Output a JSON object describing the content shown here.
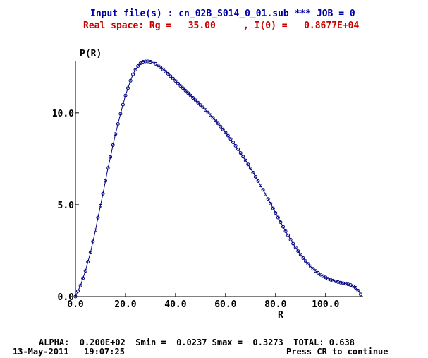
{
  "header": {
    "line1": "Input file(s) : cn_02B_S014_0_01.sub *** JOB = 0",
    "line2": "Real space: Rg =   35.00     , I(0) =   0.8677E+04"
  },
  "footer": {
    "line1": "ALPHA:  0.200E+02  Smin =  0.0237 Smax =  0.3273  TOTAL: 0.638",
    "line2": "13-May-2011   19:07:25",
    "line3": "Press CR to continue"
  },
  "colors": {
    "header1": "#0000aa",
    "header2": "#cc0000",
    "curve": "#000080",
    "axis": "#000000"
  },
  "chart_data": {
    "type": "scatter",
    "xlabel": "R",
    "ylabel": "P(R)",
    "xlim": [
      0,
      115
    ],
    "ylim": [
      0,
      12.8
    ],
    "x_ticks": [
      "0.0",
      "20.0",
      "40.0",
      "60.0",
      "80.0",
      "100.0"
    ],
    "x_tick_values": [
      0,
      20,
      40,
      60,
      80,
      100
    ],
    "y_ticks": [
      "0.0",
      "5.0",
      "10.0"
    ],
    "y_tick_values": [
      0,
      5,
      10
    ],
    "series": [
      {
        "marker": "circle",
        "connected": true,
        "x": [
          0.0,
          1.0,
          2.0,
          3.0,
          4.0,
          5.0,
          6.0,
          7.0,
          8.0,
          9.0,
          10.0,
          11.0,
          12.0,
          13.0,
          14.0,
          15.0,
          16.0,
          17.0,
          18.0,
          19.0,
          20.0,
          21.0,
          22.0,
          23.0,
          24.0,
          25.0,
          26.0,
          27.0,
          28.0,
          29.0,
          30.0,
          31.0,
          32.0,
          33.0,
          34.0,
          35.0,
          36.0,
          37.0,
          38.0,
          39.0,
          40.0,
          41.0,
          42.0,
          43.0,
          44.0,
          45.0,
          46.0,
          47.0,
          48.0,
          49.0,
          50.0,
          51.0,
          52.0,
          53.0,
          54.0,
          55.0,
          56.0,
          57.0,
          58.0,
          59.0,
          60.0,
          61.0,
          62.0,
          63.0,
          64.0,
          65.0,
          66.0,
          67.0,
          68.0,
          69.0,
          70.0,
          71.0,
          72.0,
          73.0,
          74.0,
          75.0,
          76.0,
          77.0,
          78.0,
          79.0,
          80.0,
          81.0,
          82.0,
          83.0,
          84.0,
          85.0,
          86.0,
          87.0,
          88.0,
          89.0,
          90.0,
          91.0,
          92.0,
          93.0,
          94.0,
          95.0,
          96.0,
          97.0,
          98.0,
          99.0,
          100.0,
          101.0,
          102.0,
          103.0,
          104.0,
          105.0,
          106.0,
          107.0,
          108.0,
          109.0,
          110.0,
          111.0,
          112.0,
          113.0,
          114.0
        ],
        "y": [
          0.0,
          0.3,
          0.6,
          1.0,
          1.4,
          1.9,
          2.4,
          3.0,
          3.6,
          4.3,
          4.95,
          5.6,
          6.3,
          7.0,
          7.6,
          8.25,
          8.85,
          9.4,
          9.95,
          10.45,
          10.95,
          11.35,
          11.75,
          12.1,
          12.35,
          12.55,
          12.7,
          12.78,
          12.8,
          12.8,
          12.78,
          12.74,
          12.67,
          12.58,
          12.48,
          12.37,
          12.25,
          12.13,
          12.0,
          11.87,
          11.74,
          11.6,
          11.47,
          11.34,
          11.21,
          11.08,
          10.95,
          10.82,
          10.69,
          10.56,
          10.43,
          10.3,
          10.16,
          10.02,
          9.88,
          9.73,
          9.58,
          9.42,
          9.26,
          9.1,
          8.93,
          8.76,
          8.58,
          8.4,
          8.21,
          8.02,
          7.82,
          7.62,
          7.41,
          7.2,
          6.98,
          6.75,
          6.52,
          6.29,
          6.05,
          5.81,
          5.56,
          5.31,
          5.06,
          4.8,
          4.55,
          4.3,
          4.05,
          3.8,
          3.56,
          3.33,
          3.1,
          2.88,
          2.67,
          2.47,
          2.28,
          2.1,
          1.93,
          1.78,
          1.64,
          1.51,
          1.39,
          1.29,
          1.19,
          1.11,
          1.04,
          0.97,
          0.92,
          0.87,
          0.83,
          0.79,
          0.76,
          0.73,
          0.7,
          0.67,
          0.63,
          0.57,
          0.48,
          0.33,
          0.12
        ]
      }
    ]
  }
}
